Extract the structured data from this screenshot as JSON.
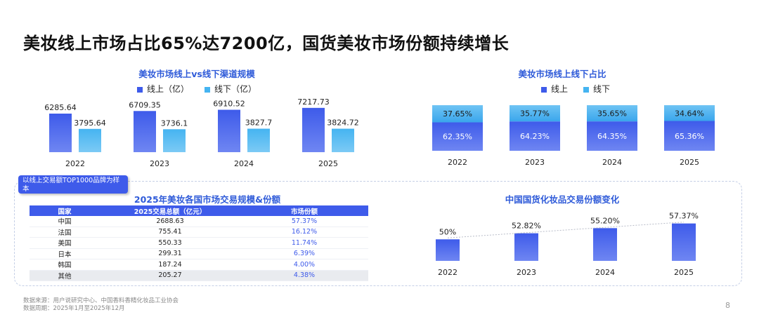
{
  "page": {
    "title": "美妆线上市场占比65%达7200亿，国货美妆市场份额持续增长",
    "page_number": "8",
    "source_line1": "数据来源：用户说研究中心、中国香料香精化妆品工业协会",
    "source_line2": "数据周期：2025年1月至2025年12月",
    "sample_note": "以线上交易额TOP1000品牌为样本"
  },
  "colors": {
    "online": "#3e5bea",
    "offline": "#45b4f1",
    "accent": "#2f5bd9"
  },
  "legend": {
    "online": "线上（亿）",
    "offline": "线下（亿）",
    "online_short": "线上",
    "offline_short": "线下"
  },
  "table": {
    "title": "2025年美妆各国市场交易规模&份额",
    "headers": [
      "国家",
      "2025交易总额（亿元）",
      "市场份额"
    ],
    "rows": [
      [
        "中国",
        "2688.63",
        "57.37%"
      ],
      [
        "法国",
        "755.41",
        "16.12%"
      ],
      [
        "美国",
        "550.33",
        "11.74%"
      ],
      [
        "日本",
        "299.31",
        "6.39%"
      ],
      [
        "韩国",
        "187.24",
        "4.00%"
      ],
      [
        "其他",
        "205.27",
        "4.38%"
      ]
    ]
  },
  "chart_data": [
    {
      "type": "bar",
      "title": "美妆市场线上vs线下渠道规模",
      "categories": [
        "2022",
        "2023",
        "2024",
        "2025"
      ],
      "series": [
        {
          "name": "线上（亿）",
          "values": [
            6285.64,
            6709.35,
            6910.52,
            7217.73
          ],
          "labels": [
            "6285.64",
            "6709.35",
            "6910.52",
            "7217.73"
          ]
        },
        {
          "name": "线下（亿）",
          "values": [
            3795.64,
            3736.1,
            3827.7,
            3824.72
          ],
          "labels": [
            "3795.64",
            "3736.1",
            "3827.7",
            "3824.72"
          ]
        }
      ],
      "ylim": [
        0,
        8000
      ]
    },
    {
      "type": "bar",
      "stacked": true,
      "title": "美妆市场线上线下占比",
      "categories": [
        "2022",
        "2023",
        "2024",
        "2025"
      ],
      "series": [
        {
          "name": "线上",
          "values": [
            62.35,
            64.23,
            64.35,
            65.36
          ],
          "labels": [
            "62.35%",
            "64.23%",
            "64.35%",
            "65.36%"
          ]
        },
        {
          "name": "线下",
          "values": [
            37.65,
            35.77,
            35.65,
            34.64
          ],
          "labels": [
            "37.65%",
            "35.77%",
            "35.65%",
            "34.64%"
          ]
        }
      ],
      "ylim": [
        0,
        100
      ]
    },
    {
      "type": "bar",
      "title": "中国国货化妆品交易份额变化",
      "categories": [
        "2022",
        "2023",
        "2024",
        "2025"
      ],
      "values": [
        50,
        52.82,
        55.2,
        57.37
      ],
      "labels": [
        "50%",
        "52.82%",
        "55.20%",
        "57.37%"
      ],
      "trendline": true,
      "ylim": [
        40,
        60
      ]
    }
  ]
}
